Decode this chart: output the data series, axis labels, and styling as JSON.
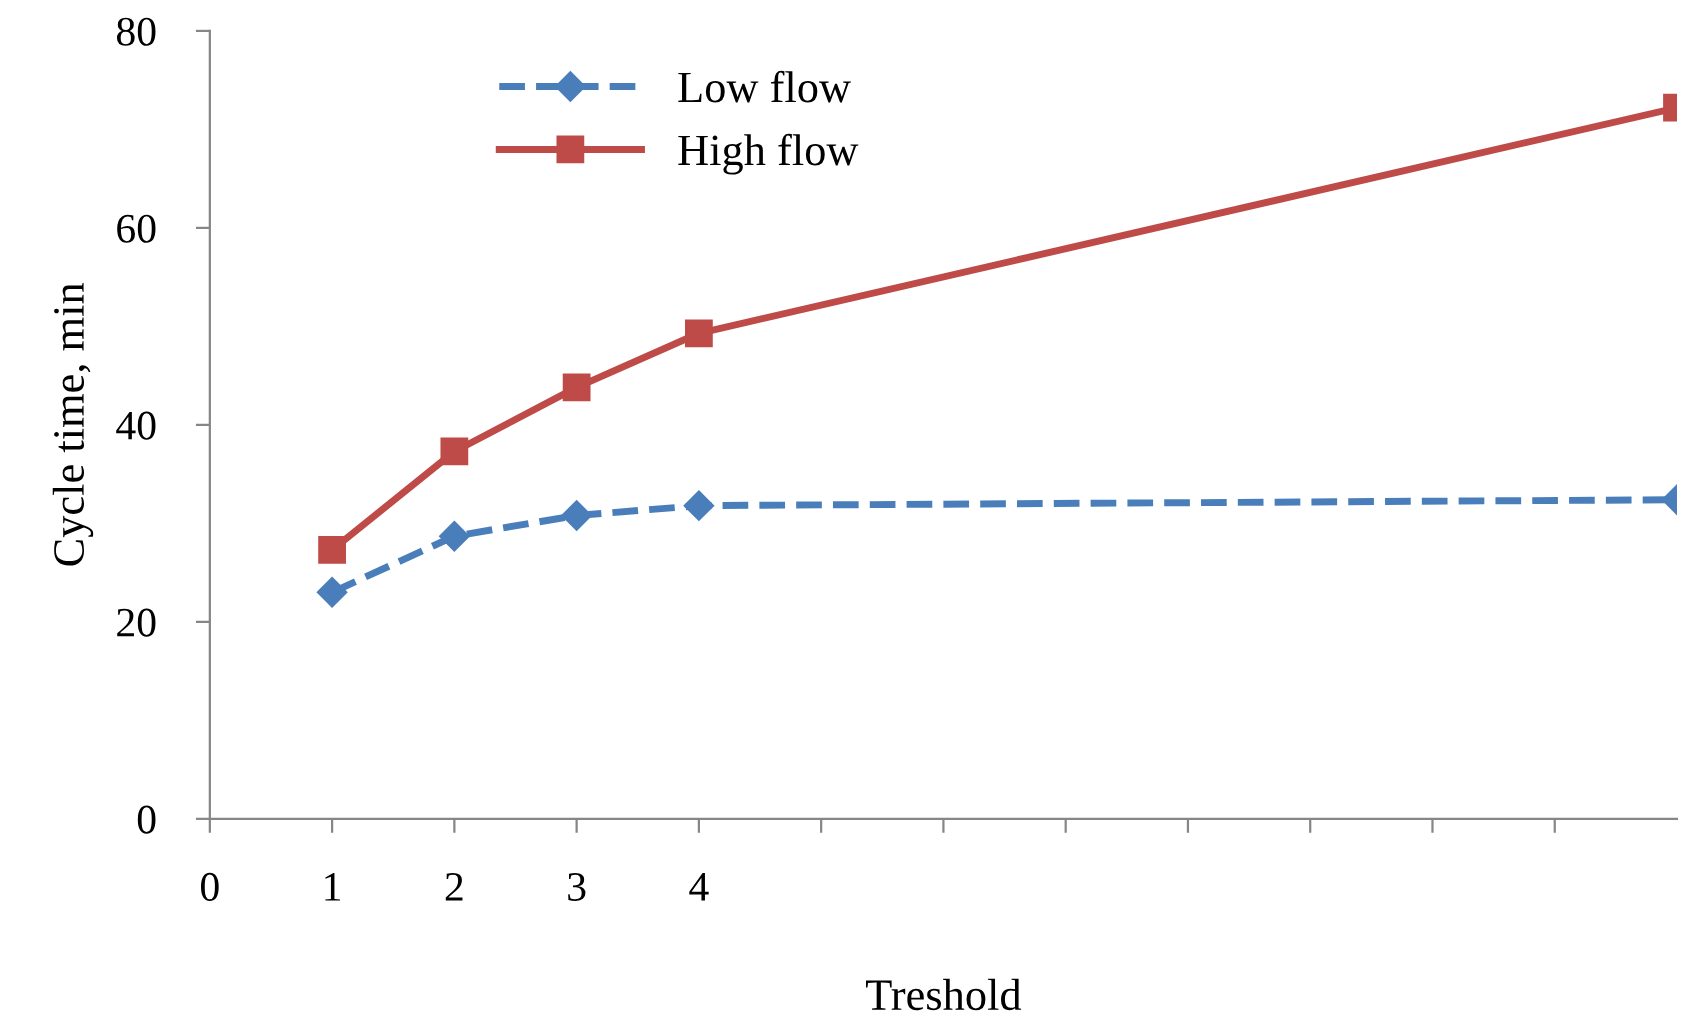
{
  "chart_data": {
    "type": "line",
    "xlabel": "Treshold",
    "ylabel": "Cycle time, min",
    "x": [
      1,
      2,
      3,
      4,
      12
    ],
    "series": [
      {
        "name": "Low flow",
        "color": "#4a7ebb",
        "values": [
          23.0,
          28.7,
          30.8,
          31.8,
          32.4
        ],
        "marker": "diamond",
        "line_style": "dashed"
      },
      {
        "name": "High flow",
        "color": "#be4b48",
        "values": [
          27.3,
          37.3,
          43.8,
          49.3,
          72.2
        ],
        "marker": "square",
        "line_style": "solid"
      }
    ],
    "xlim": [
      0,
      12
    ],
    "xticks": [
      0,
      1,
      2,
      3,
      4,
      {
        "value": 5,
        "label": null
      },
      {
        "value": 6,
        "label": null
      },
      {
        "value": 7,
        "label": null
      },
      {
        "value": 8,
        "label": null
      },
      {
        "value": 9,
        "label": null
      },
      {
        "value": 10,
        "label": null
      },
      {
        "value": 11,
        "label": null
      }
    ],
    "ylim": [
      0,
      80
    ],
    "yticks": [
      0,
      20,
      40,
      60,
      80
    ],
    "grid": false,
    "legend": "top left"
  }
}
